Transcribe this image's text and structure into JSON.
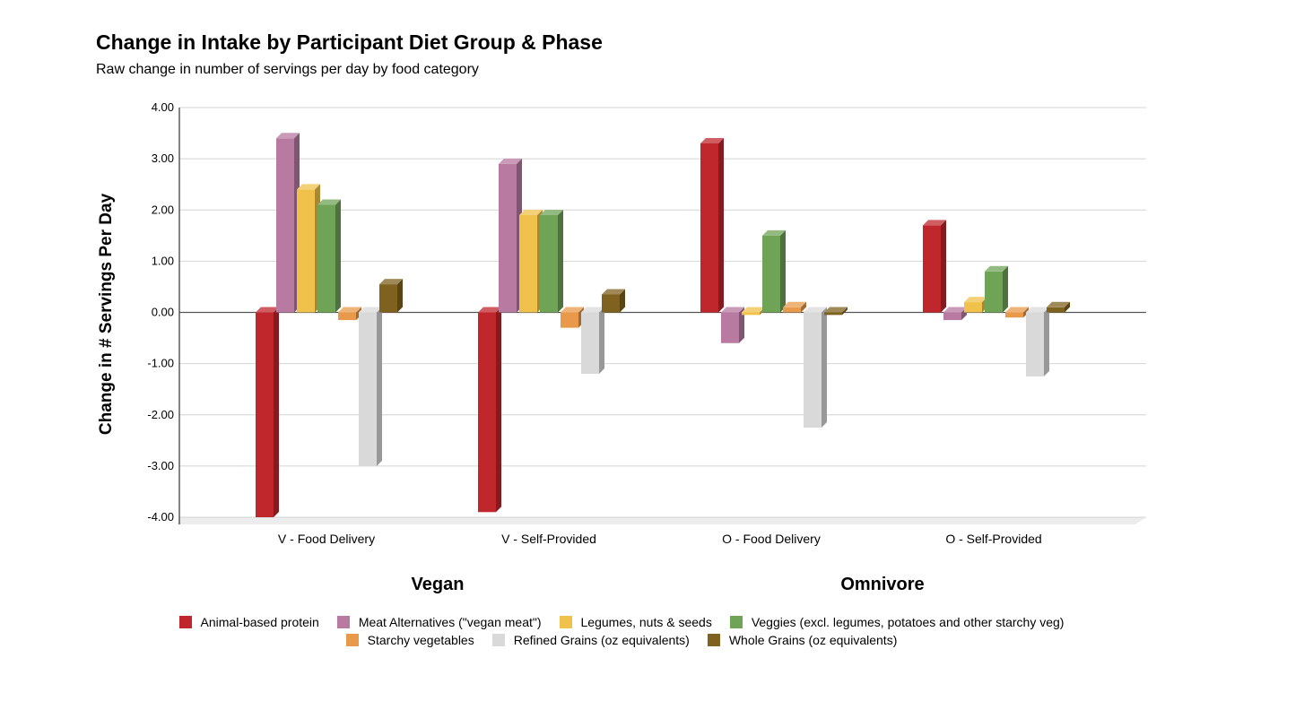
{
  "chart_data": {
    "type": "bar",
    "title": "Change in Intake by Participant Diet Group & Phase",
    "subtitle": "Raw change in number of servings per day by food category",
    "ylabel": "Change in # Servings Per Day",
    "ylim": [
      -4,
      4
    ],
    "yticks": [
      "4.00",
      "3.00",
      "2.00",
      "1.00",
      "0.00",
      "-1.00",
      "-2.00",
      "-3.00",
      "-4.00"
    ],
    "categories": [
      "V - Food Delivery",
      "V - Self-Provided",
      "O - Food Delivery",
      "O - Self-Provided"
    ],
    "groups": [
      {
        "label": "Vegan",
        "categories": [
          0,
          1
        ]
      },
      {
        "label": "Omnivore",
        "categories": [
          2,
          3
        ]
      }
    ],
    "series": [
      {
        "name": "Animal-based protein",
        "color": "#c0272d",
        "values": [
          -4.0,
          -3.9,
          3.3,
          1.7
        ]
      },
      {
        "name": "Meat Alternatives (\"vegan meat\")",
        "color": "#b87aa1",
        "values": [
          3.4,
          2.9,
          -0.6,
          -0.15
        ]
      },
      {
        "name": "Legumes, nuts & seeds",
        "color": "#f0c14b",
        "values": [
          2.4,
          1.9,
          -0.05,
          0.2
        ]
      },
      {
        "name": "Veggies (excl. legumes, potatoes and other starchy veg)",
        "color": "#6fa355",
        "values": [
          2.1,
          1.9,
          1.5,
          0.8
        ]
      },
      {
        "name": "Starchy vegetables",
        "color": "#e8994a",
        "values": [
          -0.15,
          -0.3,
          0.1,
          -0.1
        ]
      },
      {
        "name": "Refined Grains (oz equivalents)",
        "color": "#d9d9d9",
        "values": [
          -3.0,
          -1.2,
          -2.25,
          -1.25
        ]
      },
      {
        "name": "Whole Grains (oz equivalents)",
        "color": "#7f6120",
        "values": [
          0.55,
          0.35,
          -0.05,
          0.1
        ]
      }
    ],
    "grid": true,
    "legend_position": "bottom"
  }
}
